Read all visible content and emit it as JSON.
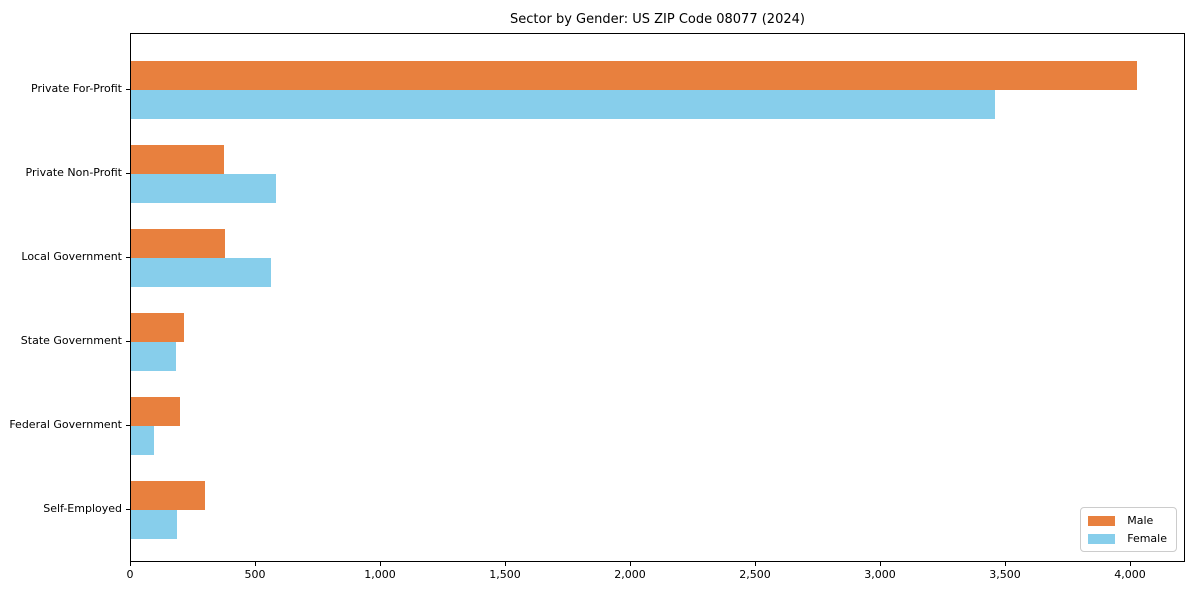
{
  "chart_data": {
    "type": "bar",
    "orientation": "horizontal",
    "title": "Sector by Gender: US ZIP Code 08077 (2024)",
    "categories": [
      "Private For-Profit",
      "Private Non-Profit",
      "Local Government",
      "State Government",
      "Federal Government",
      "Self-Employed"
    ],
    "series": [
      {
        "name": "Male",
        "color": "#e8803e",
        "values": [
          4025,
          370,
          375,
          210,
          195,
          295
        ]
      },
      {
        "name": "Female",
        "color": "#87ceeb",
        "values": [
          3455,
          580,
          560,
          180,
          90,
          185
        ]
      }
    ],
    "xlabel": "",
    "ylabel": "",
    "xlim": [
      0,
      4220
    ],
    "xticks": [
      0,
      500,
      1000,
      1500,
      2000,
      2500,
      3000,
      3500,
      4000
    ],
    "xtick_labels": [
      "0",
      "500",
      "1,000",
      "1,500",
      "2,000",
      "2,500",
      "3,000",
      "3,500",
      "4,000"
    ],
    "grid": false,
    "legend": {
      "position": "lower right",
      "entries": [
        "Male",
        "Female"
      ]
    }
  }
}
